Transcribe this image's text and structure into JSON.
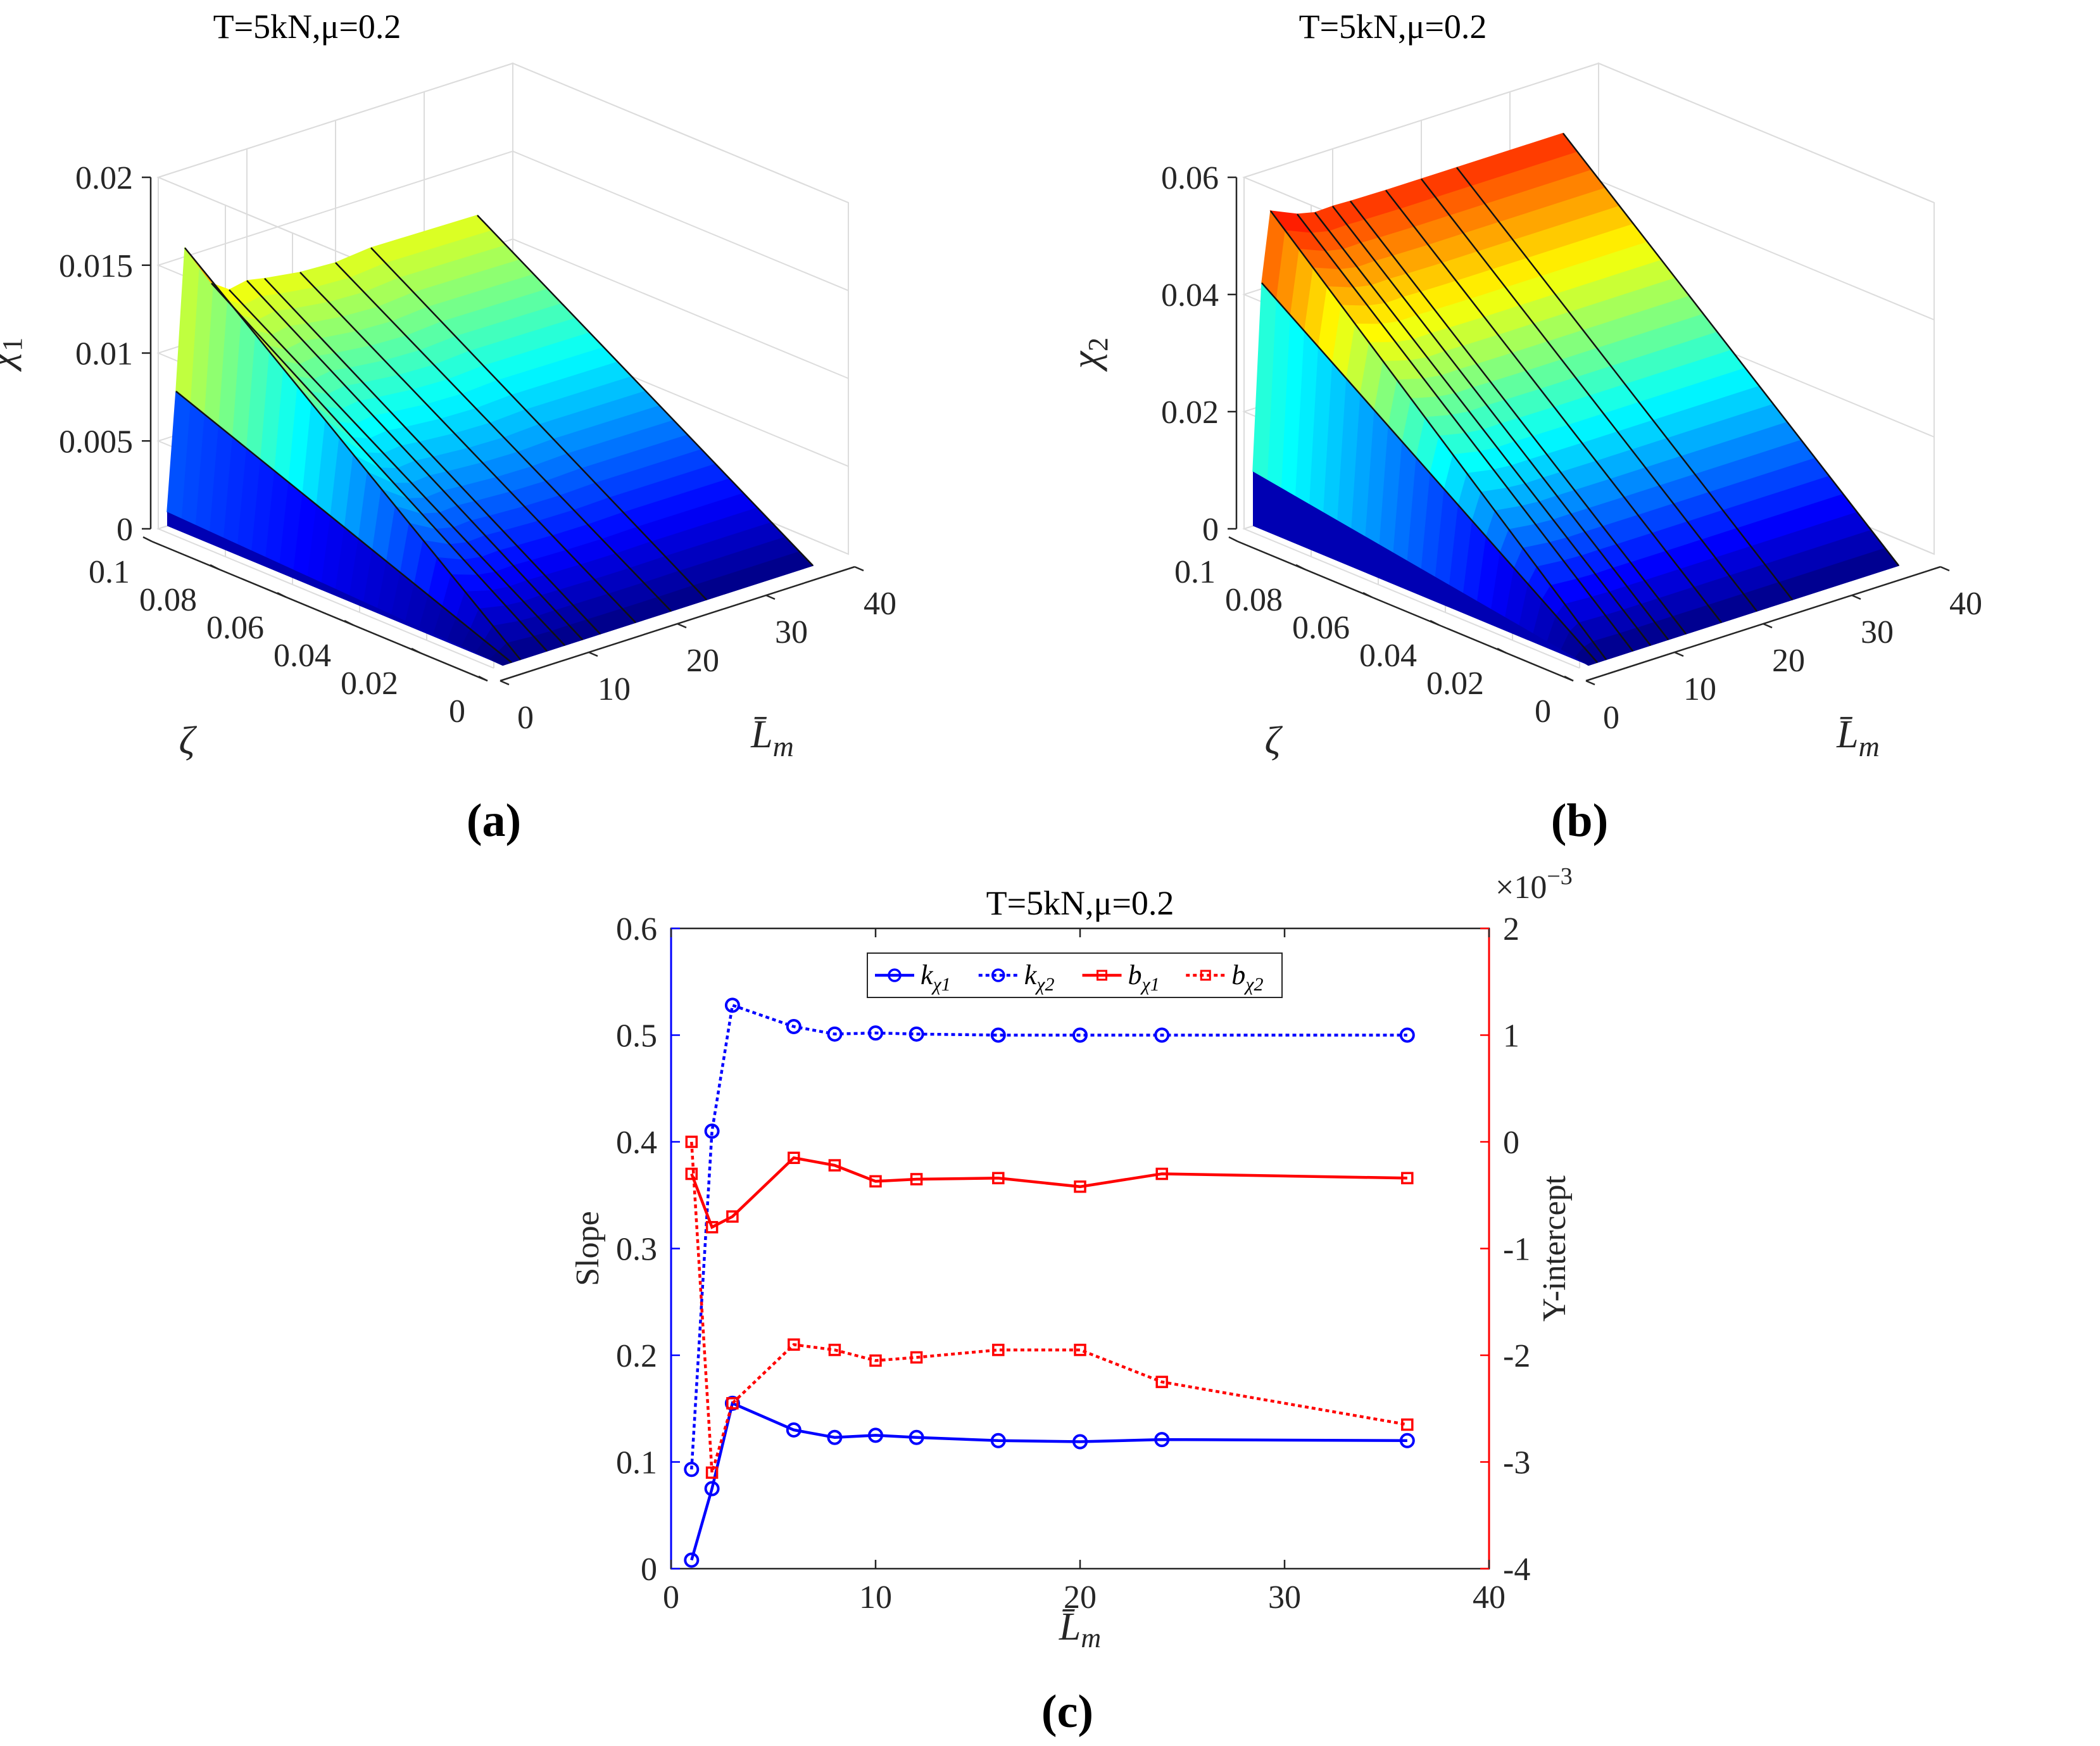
{
  "colors": {
    "blue": "#0000ff",
    "red": "#ff0000",
    "axis": "#262626",
    "grid": "#dcdcdc"
  },
  "chart_data": [
    {
      "id": "a",
      "type": "surface",
      "title": "T=5kN,μ=0.2",
      "panel_label": "(a)",
      "z_label": "χ1",
      "x_label": "L̄m",
      "y_label": "ζ",
      "z_ticks": [
        "0",
        "0.005",
        "0.01",
        "0.015",
        "0.02"
      ],
      "x_ticks": [
        "0",
        "10",
        "20",
        "30",
        "40"
      ],
      "y_ticks": [
        "0",
        "0.02",
        "0.04",
        "0.06",
        "0.08",
        "0.1"
      ],
      "zlim": [
        0,
        0.02
      ],
      "xlim": [
        0,
        40
      ],
      "ylim": [
        0,
        0.1
      ],
      "l_values": [
        1,
        2,
        3,
        6,
        8,
        10,
        12,
        16,
        20,
        24,
        36
      ],
      "slope": [
        0.008,
        0.075,
        0.155,
        0.13,
        0.123,
        0.125,
        0.123,
        0.12,
        0.119,
        0.121,
        0.12
      ]
    },
    {
      "id": "b",
      "type": "surface",
      "title": "T=5kN,μ=0.2",
      "panel_label": "(b)",
      "z_label": "χ2",
      "x_label": "L̄m",
      "y_label": "ζ",
      "z_ticks": [
        "0",
        "0.02",
        "0.04",
        "0.06"
      ],
      "x_ticks": [
        "0",
        "10",
        "20",
        "30",
        "40"
      ],
      "y_ticks": [
        "0",
        "0.02",
        "0.04",
        "0.06",
        "0.08",
        "0.1"
      ],
      "zlim": [
        0,
        0.06
      ],
      "xlim": [
        0,
        40
      ],
      "ylim": [
        0,
        0.1
      ],
      "l_values": [
        1,
        2,
        3,
        6,
        8,
        10,
        12,
        16,
        20,
        24,
        36
      ],
      "slope": [
        0.093,
        0.41,
        0.528,
        0.508,
        0.501,
        0.502,
        0.501,
        0.5,
        0.5,
        0.5,
        0.5
      ]
    },
    {
      "id": "c",
      "type": "line",
      "title": "T=5kN,μ=0.2",
      "panel_label": "(c)",
      "xlabel": "L̄m",
      "ylabel_left": "Slope",
      "ylabel_right": "Y-intercept",
      "right_exponent": "×10−3",
      "xlim": [
        0,
        40
      ],
      "ylim_left": [
        0,
        0.6
      ],
      "ylim_right": [
        -4,
        2
      ],
      "x_ticks": [
        "0",
        "10",
        "20",
        "30",
        "40"
      ],
      "left_ticks": [
        "0",
        "0.1",
        "0.2",
        "0.3",
        "0.4",
        "0.5",
        "0.6"
      ],
      "right_ticks": [
        "-4",
        "-3",
        "-2",
        "-1",
        "0",
        "1",
        "2"
      ],
      "x": [
        1,
        2,
        3,
        6,
        8,
        10,
        12,
        16,
        20,
        24,
        36
      ],
      "series": [
        {
          "name": "kχ1",
          "legend": "k",
          "legend_sub": "χ1",
          "axis": "left",
          "style": "solid",
          "marker": "circle",
          "color": "#0000ff",
          "values": [
            0.008,
            0.075,
            0.155,
            0.13,
            0.123,
            0.125,
            0.123,
            0.12,
            0.119,
            0.121,
            0.12
          ]
        },
        {
          "name": "kχ2",
          "legend": "k",
          "legend_sub": "χ2",
          "axis": "left",
          "style": "dotted",
          "marker": "circle",
          "color": "#0000ff",
          "values": [
            0.093,
            0.41,
            0.528,
            0.508,
            0.501,
            0.502,
            0.501,
            0.5,
            0.5,
            0.5,
            0.5
          ]
        },
        {
          "name": "bχ1",
          "legend": "b",
          "legend_sub": "χ1",
          "axis": "right",
          "style": "solid",
          "marker": "square",
          "color": "#ff0000",
          "values": [
            -0.3,
            -0.8,
            -0.7,
            -0.15,
            -0.22,
            -0.37,
            -0.35,
            -0.34,
            -0.42,
            -0.3,
            -0.34
          ]
        },
        {
          "name": "bχ2",
          "legend": "b",
          "legend_sub": "χ2",
          "axis": "right",
          "style": "dotted",
          "marker": "square",
          "color": "#ff0000",
          "values": [
            0.0,
            -3.1,
            -2.45,
            -1.9,
            -1.95,
            -2.05,
            -2.02,
            -1.95,
            -1.95,
            -2.25,
            -2.65
          ]
        }
      ]
    }
  ]
}
